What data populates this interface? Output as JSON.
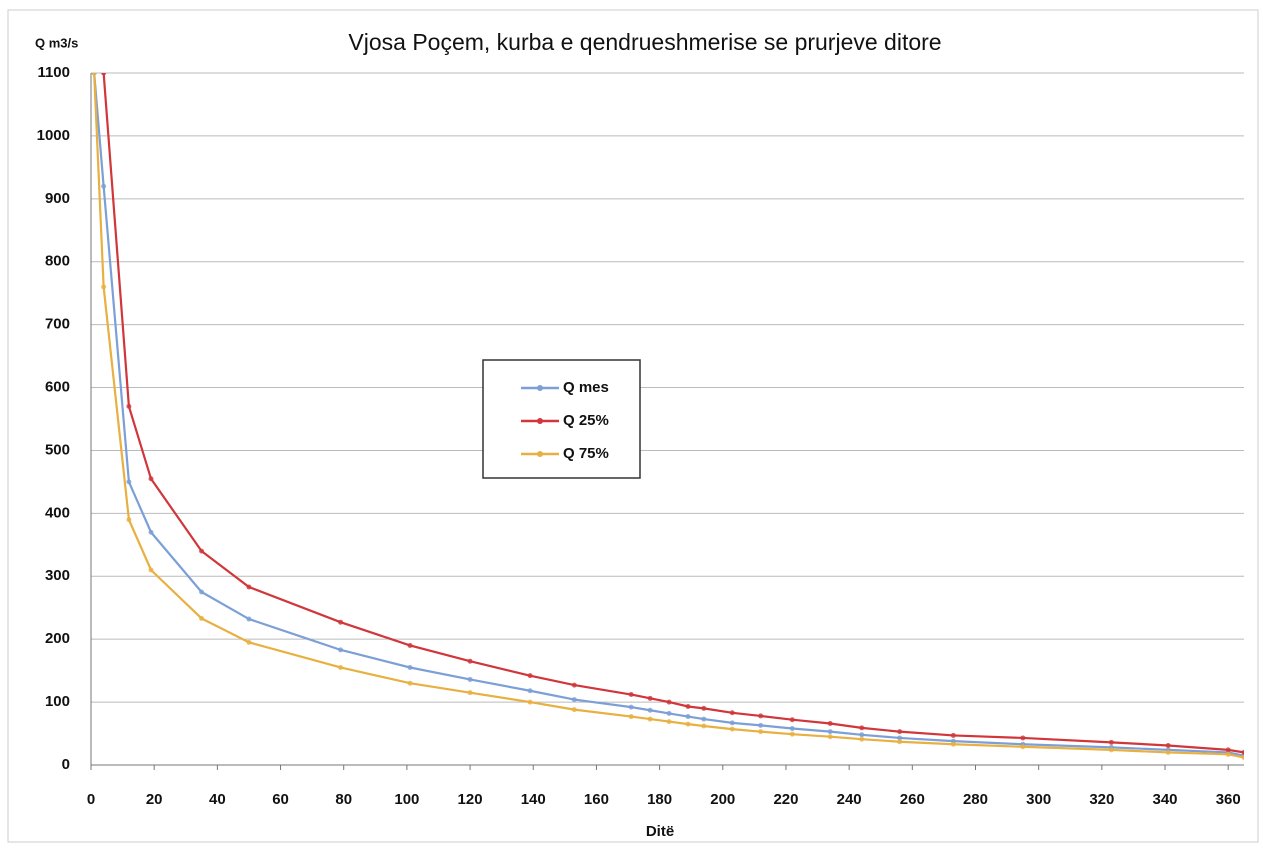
{
  "chart_data": {
    "type": "line",
    "title": "Vjosa Poçem, kurba e qendrueshmerise se prurjeve ditore",
    "y_label": "Q m3/s",
    "x_label": "Ditë",
    "x": [
      1,
      4,
      12,
      19,
      35,
      50,
      79,
      101,
      120,
      139,
      153,
      171,
      177,
      183,
      189,
      194,
      203,
      212,
      222,
      234,
      244,
      256,
      273,
      295,
      323,
      341,
      360,
      365
    ],
    "series": [
      {
        "name": "Q mes",
        "color": "#7b9fd6",
        "values": [
          1100,
          920,
          450,
          370,
          275,
          232,
          183,
          155,
          136,
          118,
          104,
          92,
          87,
          82,
          77,
          73,
          67,
          63,
          58,
          53,
          48,
          43,
          38,
          33,
          28,
          24,
          20,
          15
        ]
      },
      {
        "name": "Q 25%",
        "color": "#d0363a",
        "values": [
          null,
          1100,
          570,
          455,
          340,
          283,
          227,
          190,
          165,
          142,
          127,
          112,
          106,
          100,
          93,
          90,
          83,
          78,
          72,
          66,
          59,
          53,
          47,
          43,
          36,
          31,
          24,
          20
        ]
      },
      {
        "name": "Q 75%",
        "color": "#e8b040",
        "values": [
          1100,
          760,
          390,
          310,
          233,
          195,
          155,
          130,
          115,
          100,
          88,
          77,
          73,
          69,
          65,
          62,
          57,
          53,
          49,
          45,
          41,
          37,
          33,
          29,
          24,
          20,
          17,
          12
        ]
      }
    ],
    "xlim": [
      0,
      365
    ],
    "xticks": [
      0,
      20,
      40,
      60,
      80,
      100,
      120,
      140,
      160,
      180,
      200,
      220,
      240,
      260,
      280,
      300,
      320,
      340,
      360
    ],
    "ylim": [
      0,
      1100
    ],
    "yticks": [
      0,
      100,
      200,
      300,
      400,
      500,
      600,
      700,
      800,
      900,
      1000,
      1100
    ],
    "grid": true,
    "legend": "center"
  }
}
